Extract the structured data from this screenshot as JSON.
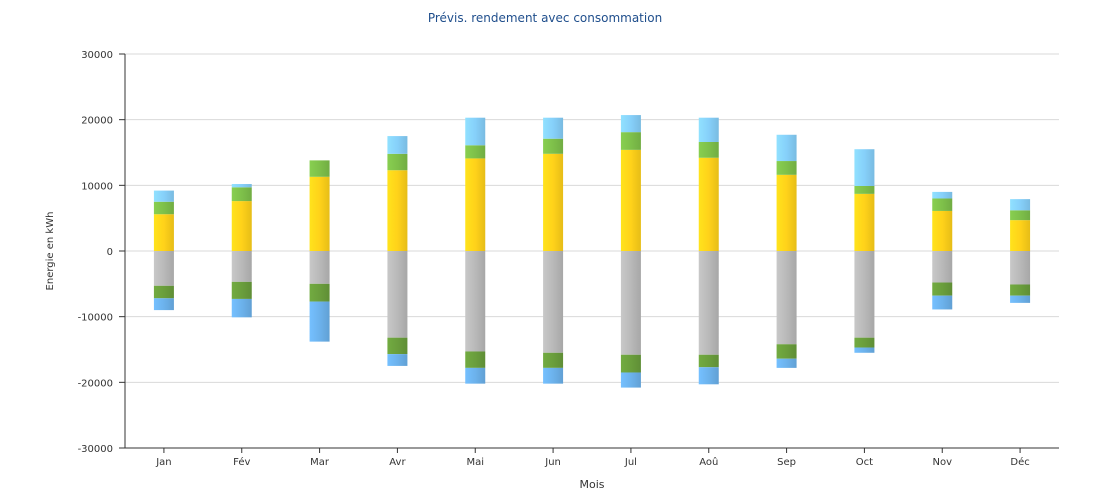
{
  "chart_data": {
    "type": "bar",
    "title": "Prévis. rendement avec consommation",
    "xlabel": "Mois",
    "ylabel": "Energie en kWh",
    "ylim": [
      -30000,
      30000
    ],
    "yticks": [
      30000,
      20000,
      10000,
      0,
      -10000,
      -20000,
      -30000
    ],
    "grid": true,
    "stacked": true,
    "categories": [
      "Jan",
      "Fév",
      "Mar",
      "Avr",
      "Mai",
      "Jun",
      "Jul",
      "Aoû",
      "Sep",
      "Oct",
      "Nov",
      "Déc"
    ],
    "positive_segments": [
      {
        "color": "#ffd21a",
        "values": [
          5600,
          7600,
          11300,
          12300,
          14100,
          14800,
          15400,
          14200,
          11600,
          8700,
          6100,
          4700
        ]
      },
      {
        "color": "#7ec04a",
        "values": [
          1900,
          2100,
          2500,
          2500,
          2000,
          2300,
          2700,
          2400,
          2100,
          1200,
          1900,
          1500
        ]
      },
      {
        "color": "#86d0fa",
        "values": [
          1700,
          500,
          0,
          2700,
          4200,
          3200,
          2600,
          3700,
          4000,
          5600,
          1000,
          1700
        ]
      }
    ],
    "negative_segments": [
      {
        "color": "#b9b9b9",
        "values": [
          -5300,
          -4700,
          -5000,
          -13200,
          -15300,
          -15500,
          -15800,
          -15800,
          -14200,
          -13200,
          -4800,
          -5100
        ]
      },
      {
        "color": "#6a9e3c",
        "values": [
          -1900,
          -2600,
          -2700,
          -2500,
          -2500,
          -2300,
          -2700,
          -1900,
          -2200,
          -1500,
          -2000,
          -1700
        ]
      },
      {
        "color": "#6cb2ec",
        "values": [
          -1800,
          -2800,
          -6100,
          -1800,
          -2400,
          -2400,
          -2300,
          -2600,
          -1400,
          -800,
          -2100,
          -1100
        ]
      }
    ]
  }
}
